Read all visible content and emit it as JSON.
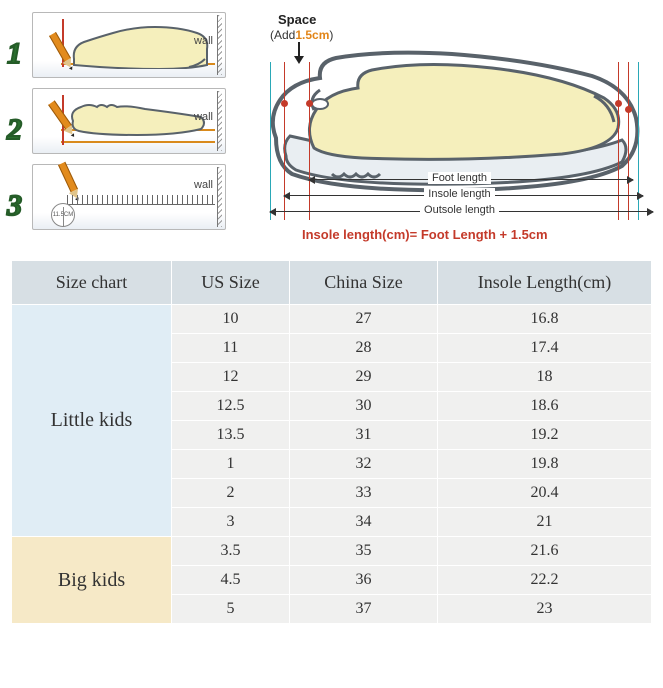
{
  "steps": {
    "s1_num": "1",
    "s2_num": "2",
    "s3_num": "3",
    "wall": "wall",
    "ruler_circle": "11.5CM"
  },
  "diagram": {
    "space_label": "Space",
    "add_prefix": "(Add",
    "add_value": "1.5cm",
    "add_suffix": ")",
    "foot_length": "Foot length",
    "insole_length": "Insole length",
    "outsole_length": "Outsole length",
    "formula": "Insole length(cm)= Foot Length + 1.5cm",
    "colors": {
      "accent_orange": "#e28518",
      "accent_red": "#c43a2a",
      "accent_cyan": "#2aa8b7",
      "foot_fill": "#f5efbc",
      "shoe_outline": "#59626a"
    }
  },
  "table": {
    "headers": [
      "Size chart",
      "US Size",
      "China Size",
      "Insole Length(cm)"
    ],
    "groups": [
      {
        "label": "Little kids",
        "class": "group-little",
        "rows": [
          [
            "10",
            "27",
            "16.8"
          ],
          [
            "11",
            "28",
            "17.4"
          ],
          [
            "12",
            "29",
            "18"
          ],
          [
            "12.5",
            "30",
            "18.6"
          ],
          [
            "13.5",
            "31",
            "19.2"
          ],
          [
            "1",
            "32",
            "19.8"
          ],
          [
            "2",
            "33",
            "20.4"
          ],
          [
            "3",
            "34",
            "21"
          ]
        ]
      },
      {
        "label": "Big kids",
        "class": "group-big",
        "rows": [
          [
            "3.5",
            "35",
            "21.6"
          ],
          [
            "4.5",
            "36",
            "22.2"
          ],
          [
            "5",
            "37",
            "23"
          ]
        ]
      }
    ],
    "header_bg": "#d7dfe4",
    "cell_bg": "#f0f0ef",
    "little_bg": "#e0edf5",
    "big_bg": "#f6e9c7"
  }
}
